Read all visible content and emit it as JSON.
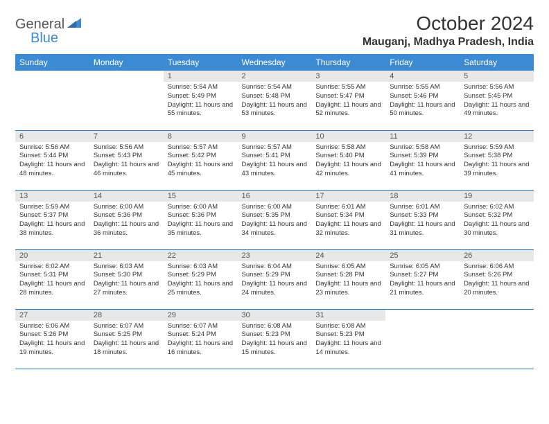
{
  "brand": {
    "part1": "General",
    "part2": "Blue"
  },
  "title": "October 2024",
  "location": "Mauganj, Madhya Pradesh, India",
  "colors": {
    "header_bg": "#3b8bd4",
    "header_text": "#ffffff",
    "daynum_bg": "#e8e8e8",
    "border": "#3b6fa0",
    "brand_blue": "#3b8bd4",
    "text": "#333333"
  },
  "day_headers": [
    "Sunday",
    "Monday",
    "Tuesday",
    "Wednesday",
    "Thursday",
    "Friday",
    "Saturday"
  ],
  "grid": [
    [
      {
        "empty": true
      },
      {
        "empty": true
      },
      {
        "n": "1",
        "sunrise": "5:54 AM",
        "sunset": "5:49 PM",
        "daylight": "11 hours and 55 minutes."
      },
      {
        "n": "2",
        "sunrise": "5:54 AM",
        "sunset": "5:48 PM",
        "daylight": "11 hours and 53 minutes."
      },
      {
        "n": "3",
        "sunrise": "5:55 AM",
        "sunset": "5:47 PM",
        "daylight": "11 hours and 52 minutes."
      },
      {
        "n": "4",
        "sunrise": "5:55 AM",
        "sunset": "5:46 PM",
        "daylight": "11 hours and 50 minutes."
      },
      {
        "n": "5",
        "sunrise": "5:56 AM",
        "sunset": "5:45 PM",
        "daylight": "11 hours and 49 minutes."
      }
    ],
    [
      {
        "n": "6",
        "sunrise": "5:56 AM",
        "sunset": "5:44 PM",
        "daylight": "11 hours and 48 minutes."
      },
      {
        "n": "7",
        "sunrise": "5:56 AM",
        "sunset": "5:43 PM",
        "daylight": "11 hours and 46 minutes."
      },
      {
        "n": "8",
        "sunrise": "5:57 AM",
        "sunset": "5:42 PM",
        "daylight": "11 hours and 45 minutes."
      },
      {
        "n": "9",
        "sunrise": "5:57 AM",
        "sunset": "5:41 PM",
        "daylight": "11 hours and 43 minutes."
      },
      {
        "n": "10",
        "sunrise": "5:58 AM",
        "sunset": "5:40 PM",
        "daylight": "11 hours and 42 minutes."
      },
      {
        "n": "11",
        "sunrise": "5:58 AM",
        "sunset": "5:39 PM",
        "daylight": "11 hours and 41 minutes."
      },
      {
        "n": "12",
        "sunrise": "5:59 AM",
        "sunset": "5:38 PM",
        "daylight": "11 hours and 39 minutes."
      }
    ],
    [
      {
        "n": "13",
        "sunrise": "5:59 AM",
        "sunset": "5:37 PM",
        "daylight": "11 hours and 38 minutes."
      },
      {
        "n": "14",
        "sunrise": "6:00 AM",
        "sunset": "5:36 PM",
        "daylight": "11 hours and 36 minutes."
      },
      {
        "n": "15",
        "sunrise": "6:00 AM",
        "sunset": "5:36 PM",
        "daylight": "11 hours and 35 minutes."
      },
      {
        "n": "16",
        "sunrise": "6:00 AM",
        "sunset": "5:35 PM",
        "daylight": "11 hours and 34 minutes."
      },
      {
        "n": "17",
        "sunrise": "6:01 AM",
        "sunset": "5:34 PM",
        "daylight": "11 hours and 32 minutes."
      },
      {
        "n": "18",
        "sunrise": "6:01 AM",
        "sunset": "5:33 PM",
        "daylight": "11 hours and 31 minutes."
      },
      {
        "n": "19",
        "sunrise": "6:02 AM",
        "sunset": "5:32 PM",
        "daylight": "11 hours and 30 minutes."
      }
    ],
    [
      {
        "n": "20",
        "sunrise": "6:02 AM",
        "sunset": "5:31 PM",
        "daylight": "11 hours and 28 minutes."
      },
      {
        "n": "21",
        "sunrise": "6:03 AM",
        "sunset": "5:30 PM",
        "daylight": "11 hours and 27 minutes."
      },
      {
        "n": "22",
        "sunrise": "6:03 AM",
        "sunset": "5:29 PM",
        "daylight": "11 hours and 25 minutes."
      },
      {
        "n": "23",
        "sunrise": "6:04 AM",
        "sunset": "5:29 PM",
        "daylight": "11 hours and 24 minutes."
      },
      {
        "n": "24",
        "sunrise": "6:05 AM",
        "sunset": "5:28 PM",
        "daylight": "11 hours and 23 minutes."
      },
      {
        "n": "25",
        "sunrise": "6:05 AM",
        "sunset": "5:27 PM",
        "daylight": "11 hours and 21 minutes."
      },
      {
        "n": "26",
        "sunrise": "6:06 AM",
        "sunset": "5:26 PM",
        "daylight": "11 hours and 20 minutes."
      }
    ],
    [
      {
        "n": "27",
        "sunrise": "6:06 AM",
        "sunset": "5:26 PM",
        "daylight": "11 hours and 19 minutes."
      },
      {
        "n": "28",
        "sunrise": "6:07 AM",
        "sunset": "5:25 PM",
        "daylight": "11 hours and 18 minutes."
      },
      {
        "n": "29",
        "sunrise": "6:07 AM",
        "sunset": "5:24 PM",
        "daylight": "11 hours and 16 minutes."
      },
      {
        "n": "30",
        "sunrise": "6:08 AM",
        "sunset": "5:23 PM",
        "daylight": "11 hours and 15 minutes."
      },
      {
        "n": "31",
        "sunrise": "6:08 AM",
        "sunset": "5:23 PM",
        "daylight": "11 hours and 14 minutes."
      },
      {
        "empty": true
      },
      {
        "empty": true
      }
    ]
  ],
  "labels": {
    "sunrise": "Sunrise:",
    "sunset": "Sunset:",
    "daylight": "Daylight:"
  }
}
